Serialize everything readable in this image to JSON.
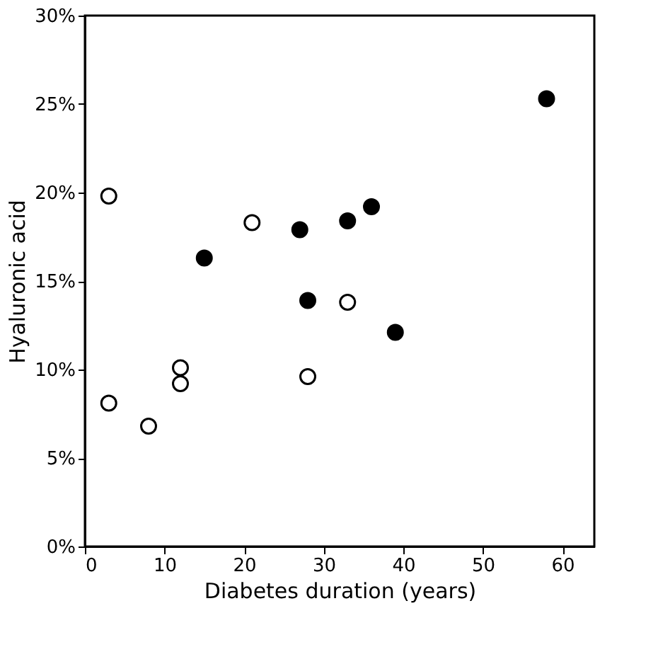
{
  "chart_data": {
    "type": "scatter",
    "xlabel": "Diabetes duration (years)",
    "ylabel": "Hyaluronic acid",
    "series": [
      {
        "color": "#ffffff",
        "x": [
          3,
          3,
          8,
          12,
          12,
          21,
          28,
          33
        ],
        "values": [
          19.8,
          8.1,
          6.8,
          10.1,
          9.2,
          18.3,
          9.6,
          13.8
        ]
      },
      {
        "color": "#000000",
        "x": [
          15,
          27,
          28,
          33,
          36,
          39,
          58
        ],
        "values": [
          16.3,
          17.9,
          13.9,
          18.4,
          19.2,
          12.1,
          25.3
        ]
      }
    ],
    "xlim": [
      0,
      64
    ],
    "xticks": [
      0,
      10,
      20,
      30,
      40,
      50,
      60
    ],
    "ylim": [
      0,
      30
    ],
    "yticks": [
      {
        "value": 0,
        "label": "0%"
      },
      {
        "value": 5,
        "label": "5%"
      },
      {
        "value": 10,
        "label": "10%"
      },
      {
        "value": 15,
        "label": "15%"
      },
      {
        "value": 20,
        "label": "20%"
      },
      {
        "value": 25,
        "label": "25%"
      },
      {
        "value": 30,
        "label": "30%"
      }
    ],
    "grid": false,
    "legend": false,
    "marker": "circle"
  }
}
